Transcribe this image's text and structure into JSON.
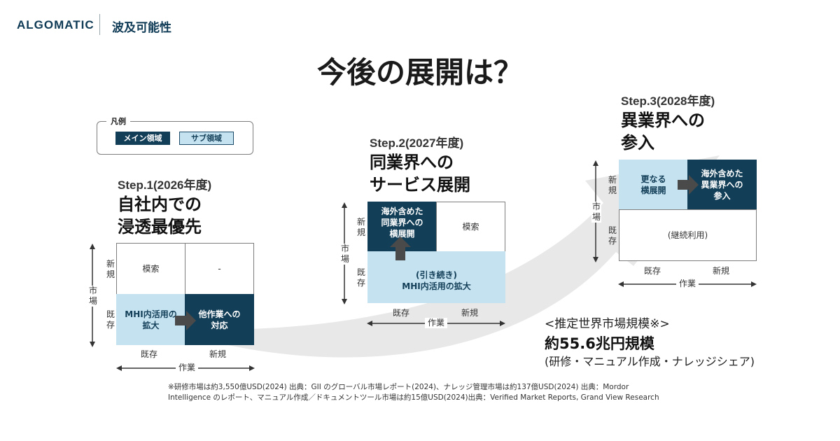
{
  "header": {
    "brand": "ALGOMATIC",
    "section": "波及可能性"
  },
  "title": "今後の展開は？",
  "legend": {
    "title": "凡例",
    "main": "メイン領域",
    "sub": "サブ領域"
  },
  "colors": {
    "main": "#123e57",
    "sub": "#c5e2f1",
    "arrow": "#e8e8e8"
  },
  "axis": {
    "market_v1": "市",
    "market_v2": "場",
    "new_v1": "新",
    "new_v2": "規",
    "existing_v1": "既",
    "existing_v2": "存",
    "existing": "既存",
    "new": "新規",
    "work": "作業"
  },
  "step1": {
    "label": "Step.1(2026年度)",
    "head1": "自社内での",
    "head2": "浸透最優先",
    "cell_tl": "模索",
    "cell_tr": "-",
    "cell_bl1": "MHI内活用の",
    "cell_bl2": "拡大",
    "cell_br1": "他作業への",
    "cell_br2": "対応"
  },
  "step2": {
    "label": "Step.2(2027年度)",
    "head1": "同業界への",
    "head2": "サービス展開",
    "cell_tl1": "海外含めた",
    "cell_tl2": "同業界への",
    "cell_tl3": "横展開",
    "cell_tr": "模索",
    "cell_b1": "(引き続き)",
    "cell_b2": "MHI内活用の拡大"
  },
  "step3": {
    "label": "Step.3(2028年度)",
    "head1": "異業界への",
    "head2": "参入",
    "cell_tl1": "更なる",
    "cell_tl2": "横展開",
    "cell_tr1": "海外含めた",
    "cell_tr2": "異業界への",
    "cell_tr3": "参入",
    "cell_b": "(継続利用)"
  },
  "estimate": {
    "title": "<推定世界市場規模※>",
    "value": "約55.6兆円規模",
    "sub": "(研修・マニュアル作成・ナレッジシェア)"
  },
  "footnote": {
    "line1": "※研修市場は約3,550億USD(2024) 出典：GII のグローバル市場レポート(2024)、ナレッジ管理市場は約137億USD(2024) 出典：Mordor",
    "line2": "Intelligence のレポート、マニュアル作成／ドキュメントツール市場は約15億USD(2024)出典：Verified Market Reports, Grand View Research"
  }
}
